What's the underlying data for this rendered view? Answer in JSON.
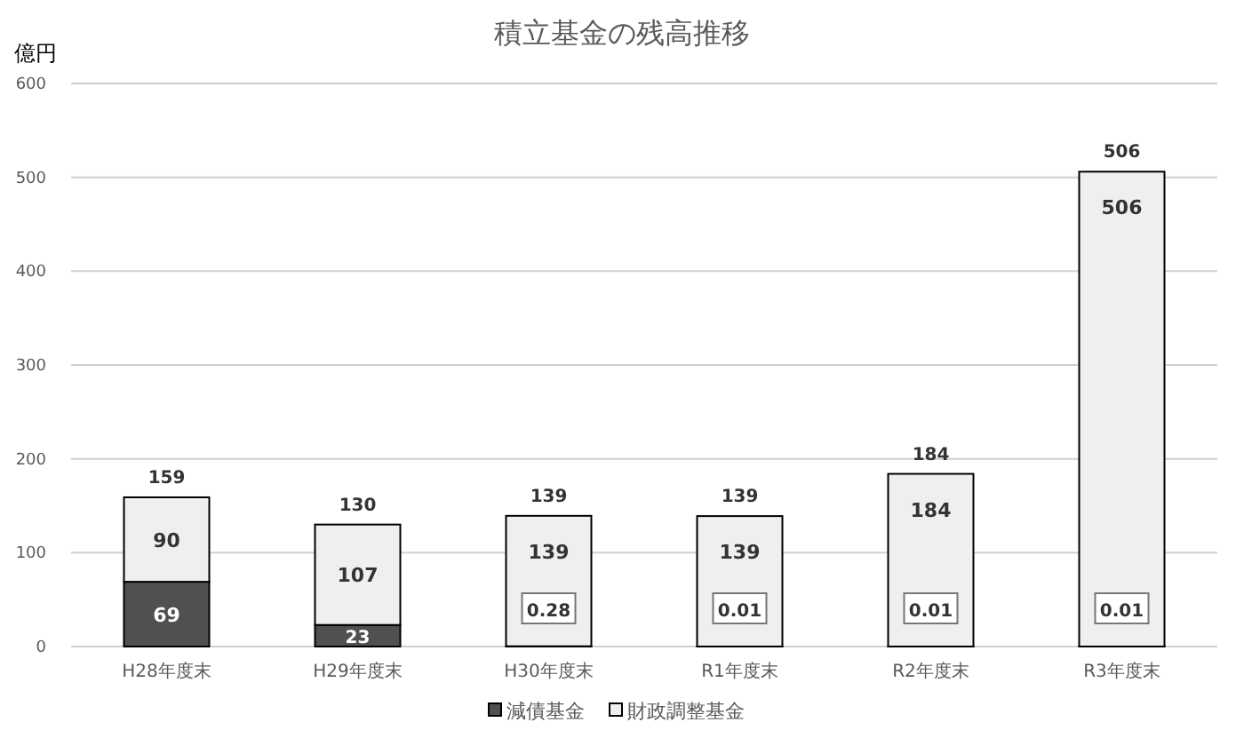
{
  "chart_data": {
    "type": "bar",
    "stacked": true,
    "title": "積立基金の残高推移",
    "ylabel": "億円",
    "categories": [
      "H28年度末",
      "H29年度末",
      "H30年度末",
      "R1年度末",
      "R2年度末",
      "R3年度末"
    ],
    "series": [
      {
        "name": "減債基金",
        "color": "#505050",
        "values": [
          69,
          23,
          0.28,
          0.01,
          0.01,
          0.01
        ]
      },
      {
        "name": "財政調整基金",
        "color": "#efefef",
        "values": [
          90,
          107,
          139,
          139,
          184,
          506
        ]
      }
    ],
    "totals": [
      "159",
      "130",
      "139",
      "139",
      "184",
      "506"
    ],
    "ylim": [
      0,
      600
    ],
    "yticks": [
      0,
      100,
      200,
      300,
      400,
      500,
      600
    ],
    "grid": "y",
    "legend": "bottom",
    "data_labels": true
  }
}
